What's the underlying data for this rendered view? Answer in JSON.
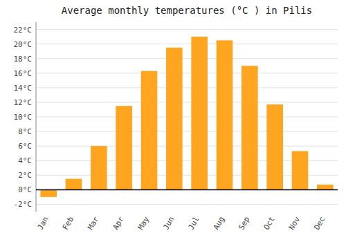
{
  "chart_data": {
    "type": "bar",
    "title": "Average monthly temperatures (°C ) in Pilis",
    "categories": [
      "Jan",
      "Feb",
      "Mar",
      "Apr",
      "May",
      "Jun",
      "Jul",
      "Aug",
      "Sep",
      "Oct",
      "Nov",
      "Dec"
    ],
    "values": [
      -1.0,
      1.5,
      6.0,
      11.5,
      16.3,
      19.5,
      21.0,
      20.5,
      17.0,
      11.7,
      5.3,
      0.7
    ],
    "color": "#FFA520",
    "ylim": [
      -3,
      23
    ],
    "yticks": [
      {
        "value": -2,
        "label": "-2°C"
      },
      {
        "value": 0,
        "label": "0°C"
      },
      {
        "value": 2,
        "label": "2°C"
      },
      {
        "value": 4,
        "label": "4°C"
      },
      {
        "value": 6,
        "label": "6°C"
      },
      {
        "value": 8,
        "label": "8°C"
      },
      {
        "value": 10,
        "label": "10°C"
      },
      {
        "value": 12,
        "label": "12°C"
      },
      {
        "value": 14,
        "label": "14°C"
      },
      {
        "value": 16,
        "label": "16°C"
      },
      {
        "value": 18,
        "label": "18°C"
      },
      {
        "value": 20,
        "label": "20°C"
      },
      {
        "value": 22,
        "label": "22°C"
      }
    ],
    "grid": true
  }
}
